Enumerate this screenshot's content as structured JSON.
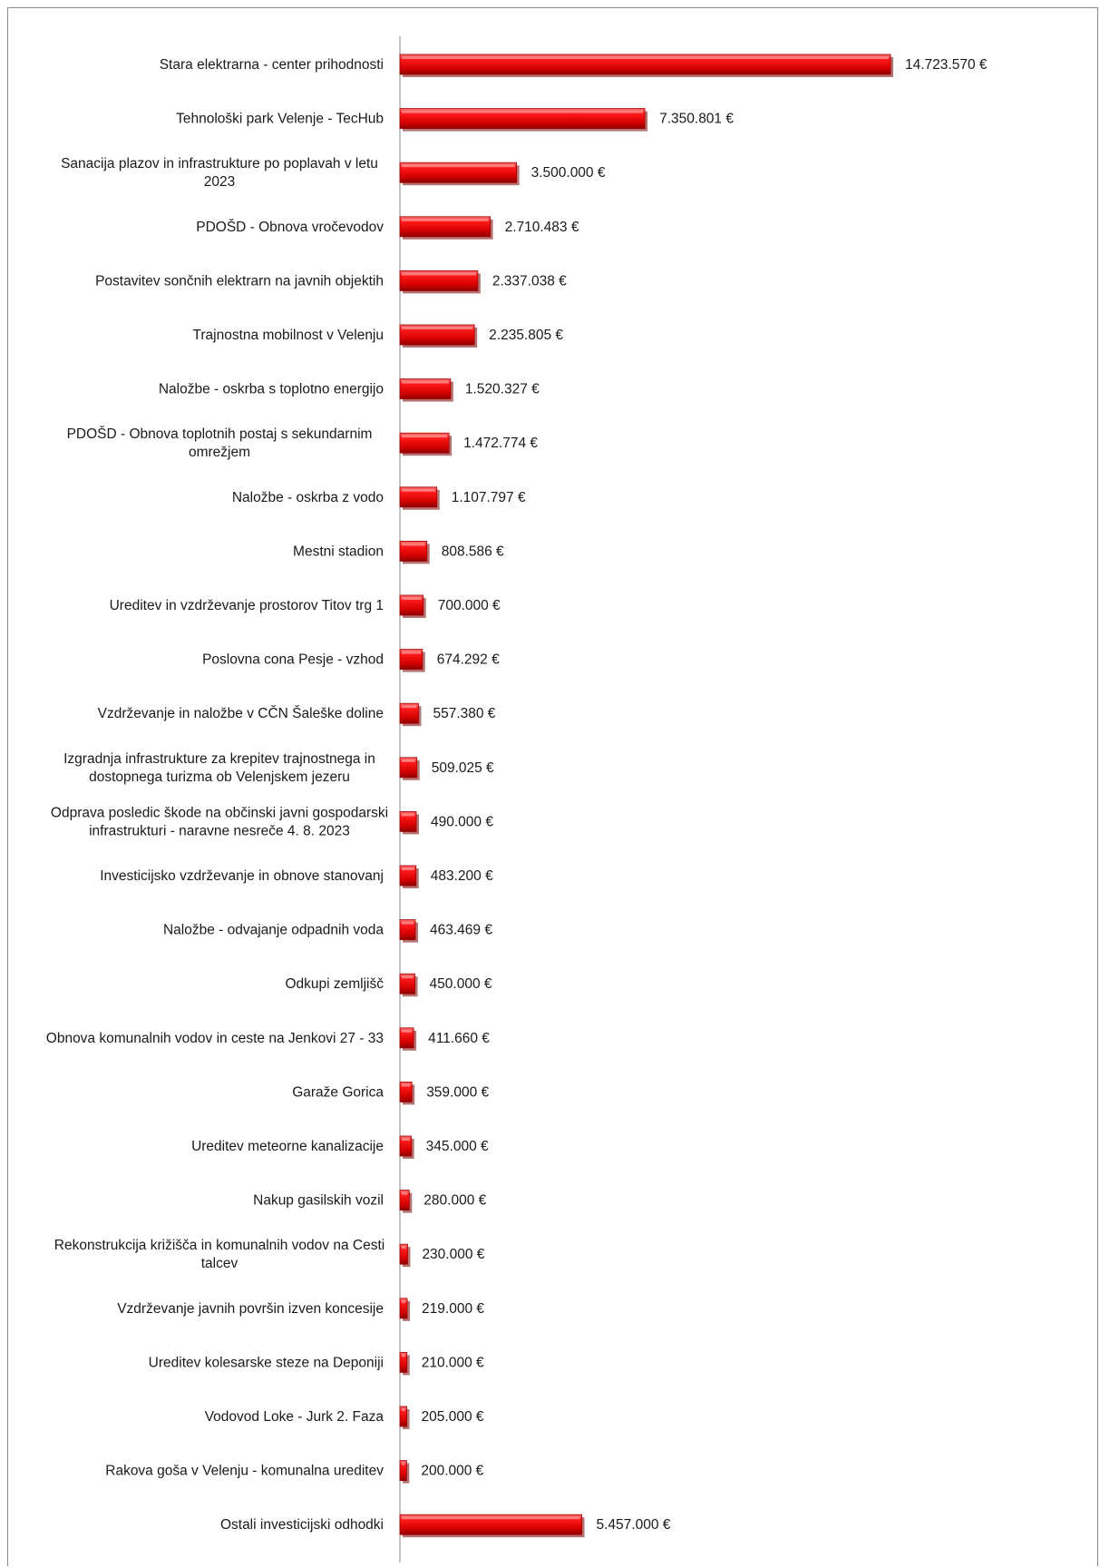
{
  "chart_data": {
    "type": "bar",
    "orientation": "horizontal",
    "categories": [
      "Stara elektrarna - center prihodnosti",
      "Tehnološki park Velenje -  TecHub",
      "Sanacija plazov in infrastrukture po poplavah v letu 2023",
      "PDOŠD - Obnova vročevodov",
      "Postavitev sončnih elektrarn na javnih objektih",
      "Trajnostna mobilnost v Velenju",
      "Naložbe - oskrba s toplotno energijo",
      "PDOŠD - Obnova toplotnih postaj s sekundarnim omrežjem",
      "Naložbe - oskrba z vodo",
      "Mestni stadion",
      "Ureditev in vzdrževanje prostorov Titov trg 1",
      "Poslovna cona Pesje - vzhod",
      "Vzdrževanje in naložbe v CČN Šaleške doline",
      "Izgradnja infrastrukture za krepitev trajnostnega in dostopnega turizma ob Velenjskem jezeru",
      "Odprava posledic škode na občinski javni gospodarski infrastrukturi -  naravne nesreče 4. 8. 2023",
      "Investicijsko vzdrževanje in obnove stanovanj",
      "Naložbe - odvajanje odpadnih voda",
      "Odkupi zemljišč",
      "Obnova komunalnih vodov in ceste na Jenkovi 27 - 33",
      "Garaže Gorica",
      "Ureditev meteorne kanalizacije",
      "Nakup gasilskih vozil",
      "Rekonstrukcija križišča in komunalnih vodov na Cesti talcev",
      "Vzdrževanje javnih površin izven koncesije",
      "Ureditev kolesarske steze na Deponiji",
      "Vodovod Loke - Jurk 2. Faza",
      "Rakova goša v Velenju - komunalna ureditev",
      "Ostali investicijski odhodki"
    ],
    "category_lines": [
      [
        "Stara elektrarna - center prihodnosti"
      ],
      [
        "Tehnološki park Velenje -  TecHub"
      ],
      [
        "Sanacija plazov in infrastrukture po poplavah v letu",
        "2023"
      ],
      [
        "PDOŠD - Obnova vročevodov"
      ],
      [
        "Postavitev sončnih elektrarn na javnih objektih"
      ],
      [
        "Trajnostna mobilnost v Velenju"
      ],
      [
        "Naložbe - oskrba s toplotno energijo"
      ],
      [
        "PDOŠD - Obnova toplotnih postaj s sekundarnim",
        "omrežjem"
      ],
      [
        "Naložbe - oskrba z vodo"
      ],
      [
        "Mestni stadion"
      ],
      [
        "Ureditev in vzdrževanje prostorov Titov trg 1"
      ],
      [
        "Poslovna cona Pesje - vzhod"
      ],
      [
        "Vzdrževanje in naložbe v CČN Šaleške doline"
      ],
      [
        "Izgradnja infrastrukture za krepitev trajnostnega in",
        "dostopnega turizma ob Velenjskem jezeru"
      ],
      [
        "Odprava posledic škode na občinski javni gospodarski",
        "infrastrukturi -  naravne nesreče 4. 8. 2023"
      ],
      [
        "Investicijsko vzdrževanje in obnove stanovanj"
      ],
      [
        "Naložbe - odvajanje odpadnih voda"
      ],
      [
        "Odkupi zemljišč"
      ],
      [
        "Obnova komunalnih vodov in ceste na Jenkovi 27 - 33"
      ],
      [
        "Garaže Gorica"
      ],
      [
        "Ureditev meteorne kanalizacije"
      ],
      [
        "Nakup gasilskih vozil"
      ],
      [
        "Rekonstrukcija križišča in komunalnih vodov na Cesti",
        "talcev"
      ],
      [
        "Vzdrževanje javnih površin izven koncesije"
      ],
      [
        "Ureditev kolesarske steze na Deponiji"
      ],
      [
        "Vodovod Loke - Jurk 2. Faza"
      ],
      [
        "Rakova goša v Velenju - komunalna ureditev"
      ],
      [
        "Ostali investicijski odhodki"
      ]
    ],
    "values": [
      14723570,
      7350801,
      3500000,
      2710483,
      2337038,
      2235805,
      1520327,
      1472774,
      1107797,
      808586,
      700000,
      674292,
      557380,
      509025,
      490000,
      483200,
      463469,
      450000,
      411660,
      359000,
      345000,
      280000,
      230000,
      219000,
      210000,
      205000,
      200000,
      5457000
    ],
    "value_labels": [
      "14.723.570 €",
      "7.350.801 €",
      "3.500.000 €",
      "2.710.483 €",
      "2.337.038 €",
      "2.235.805 €",
      "1.520.327 €",
      "1.472.774 €",
      "1.107.797 €",
      "808.586 €",
      "700.000 €",
      "674.292 €",
      "557.380 €",
      "509.025 €",
      "490.000 €",
      "483.200 €",
      "463.469 €",
      "450.000 €",
      "411.660 €",
      "359.000 €",
      "345.000 €",
      "280.000 €",
      "230.000 €",
      "219.000 €",
      "210.000 €",
      "205.000 €",
      "200.000 €",
      "5.457.000 €"
    ],
    "title": "",
    "xlabel": "",
    "ylabel": "",
    "xlim": [
      0,
      14723570
    ],
    "grid": false,
    "legend": "none",
    "bar_color": "#e00000",
    "bar_shadow_color": "#7a0000"
  }
}
